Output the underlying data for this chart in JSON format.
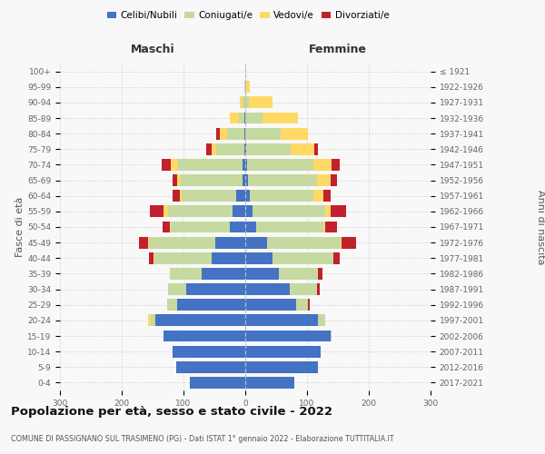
{
  "age_groups": [
    "100+",
    "95-99",
    "90-94",
    "85-89",
    "80-84",
    "75-79",
    "70-74",
    "65-69",
    "60-64",
    "55-59",
    "50-54",
    "45-49",
    "40-44",
    "35-39",
    "30-34",
    "25-29",
    "20-24",
    "15-19",
    "10-14",
    "5-9",
    "0-4"
  ],
  "birth_years": [
    "≤ 1921",
    "1922-1926",
    "1927-1931",
    "1932-1936",
    "1937-1941",
    "1942-1946",
    "1947-1951",
    "1952-1956",
    "1957-1961",
    "1962-1966",
    "1967-1971",
    "1972-1976",
    "1977-1981",
    "1982-1986",
    "1987-1991",
    "1992-1996",
    "1997-2001",
    "2002-2006",
    "2007-2011",
    "2012-2016",
    "2017-2021"
  ],
  "maschi": {
    "celibe": [
      0,
      0,
      0,
      1,
      1,
      2,
      4,
      5,
      15,
      20,
      25,
      48,
      55,
      70,
      95,
      110,
      145,
      132,
      118,
      112,
      90
    ],
    "coniugato": [
      0,
      1,
      4,
      10,
      28,
      45,
      105,
      100,
      88,
      105,
      95,
      108,
      92,
      52,
      30,
      16,
      8,
      0,
      0,
      0,
      0
    ],
    "vedovo": [
      0,
      1,
      5,
      14,
      12,
      8,
      12,
      5,
      3,
      8,
      2,
      2,
      1,
      0,
      0,
      0,
      4,
      0,
      0,
      0,
      0
    ],
    "divorziato": [
      0,
      0,
      0,
      0,
      6,
      8,
      14,
      8,
      12,
      22,
      12,
      14,
      8,
      0,
      0,
      0,
      0,
      0,
      0,
      0,
      0
    ]
  },
  "femmine": {
    "nubile": [
      0,
      0,
      0,
      0,
      0,
      2,
      3,
      4,
      8,
      12,
      18,
      36,
      44,
      55,
      72,
      82,
      118,
      138,
      122,
      118,
      80
    ],
    "coniugata": [
      0,
      2,
      6,
      28,
      58,
      72,
      108,
      112,
      102,
      118,
      108,
      118,
      98,
      62,
      44,
      20,
      12,
      2,
      0,
      0,
      0
    ],
    "vedova": [
      2,
      6,
      38,
      58,
      44,
      38,
      28,
      22,
      16,
      8,
      3,
      2,
      1,
      0,
      0,
      0,
      0,
      0,
      0,
      0,
      0
    ],
    "divorziata": [
      0,
      0,
      0,
      0,
      0,
      5,
      14,
      10,
      12,
      25,
      20,
      24,
      10,
      8,
      5,
      3,
      0,
      0,
      0,
      0,
      0
    ]
  },
  "colors": {
    "celibe": "#4472C4",
    "coniugato": "#C5D9A0",
    "vedovo": "#FFD966",
    "divorziato": "#C0212C"
  },
  "title": "Popolazione per età, sesso e stato civile - 2022",
  "subtitle": "COMUNE DI PASSIGNANO SUL TRASIMENO (PG) - Dati ISTAT 1° gennaio 2022 - Elaborazione TUTTITALIA.IT",
  "label_maschi": "Maschi",
  "label_femmine": "Femmine",
  "ylabel_left": "Fasce di età",
  "ylabel_right": "Anni di nascita",
  "xlim": 300,
  "bg_color": "#f8f8f8",
  "grid_color": "#cccccc",
  "legend_labels": [
    "Celibi/Nubili",
    "Coniugati/e",
    "Vedovi/e",
    "Divorziati/e"
  ]
}
